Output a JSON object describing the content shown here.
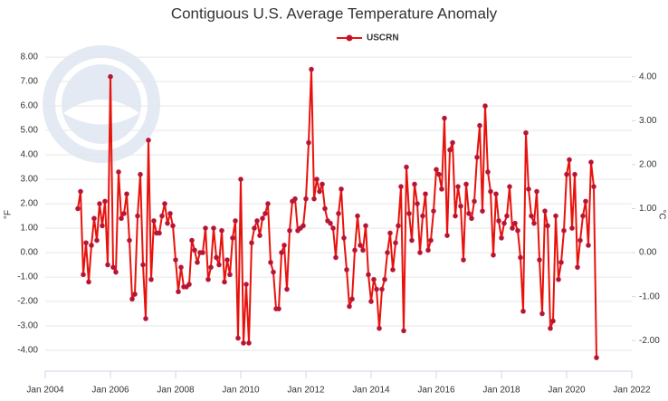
{
  "chart_data": {
    "type": "line",
    "title": "Contiguous U.S. Average Temperature Anomaly",
    "y_label": "°F",
    "y2_label": "°C",
    "xlim": [
      "2004-01",
      "2022-01"
    ],
    "xticks": [
      {
        "value": "2004-01",
        "label": "Jan 2004"
      },
      {
        "value": "2006-01",
        "label": "Jan 2006"
      },
      {
        "value": "2008-01",
        "label": "Jan 2008"
      },
      {
        "value": "2010-01",
        "label": "Jan 2010"
      },
      {
        "value": "2012-01",
        "label": "Jan 2012"
      },
      {
        "value": "2014-01",
        "label": "Jan 2014"
      },
      {
        "value": "2016-01",
        "label": "Jan 2016"
      },
      {
        "value": "2018-01",
        "label": "Jan 2018"
      },
      {
        "value": "2020-01",
        "label": "Jan 2020"
      },
      {
        "value": "2022-01",
        "label": "Jan 2022"
      }
    ],
    "ylim": [
      -4.85,
      8.3
    ],
    "yticks": [
      {
        "value": -4,
        "label": "-4.00"
      },
      {
        "value": -3,
        "label": "-3.00"
      },
      {
        "value": -2,
        "label": "-2.00"
      },
      {
        "value": -1,
        "label": "-1.00"
      },
      {
        "value": 0,
        "label": "0.00"
      },
      {
        "value": 1,
        "label": "1.00"
      },
      {
        "value": 2,
        "label": "2.00"
      },
      {
        "value": 3,
        "label": "3.00"
      },
      {
        "value": 4,
        "label": "4.00"
      },
      {
        "value": 5,
        "label": "5.00"
      },
      {
        "value": 6,
        "label": "6.00"
      },
      {
        "value": 7,
        "label": "7.00"
      },
      {
        "value": 8,
        "label": "8.00"
      }
    ],
    "y2lim": [
      -2.694,
      4.611
    ],
    "y2ticks": [
      {
        "value": -2,
        "label": "-2.00"
      },
      {
        "value": -1,
        "label": "-1.00"
      },
      {
        "value": 0,
        "label": "0.00"
      },
      {
        "value": 1,
        "label": "1.00"
      },
      {
        "value": 2,
        "label": "2.00"
      },
      {
        "value": 3,
        "label": "3.00"
      },
      {
        "value": 4,
        "label": "4.00"
      }
    ],
    "grid": true,
    "legend": "top",
    "series": [
      {
        "name": "USCRN",
        "color": "#e8120c",
        "marker_color": "#a3194f",
        "start": "2005-01",
        "values": [
          1.8,
          2.5,
          -0.9,
          0.4,
          -1.2,
          0.3,
          1.4,
          0.5,
          2.0,
          1.1,
          2.1,
          -0.5,
          7.2,
          -0.6,
          -0.8,
          3.3,
          1.4,
          1.6,
          2.4,
          0.5,
          -1.9,
          -1.7,
          1.5,
          3.2,
          -0.5,
          -2.7,
          4.6,
          -1.1,
          1.3,
          0.8,
          0.8,
          1.5,
          2.0,
          1.2,
          1.6,
          1.1,
          -0.3,
          -1.6,
          -0.6,
          -1.4,
          -1.4,
          -1.3,
          0.5,
          0.1,
          -0.4,
          0.0,
          0.0,
          1.0,
          -1.1,
          -0.6,
          1.0,
          -0.2,
          -0.5,
          0.9,
          -1.2,
          -0.3,
          -0.9,
          0.6,
          1.3,
          -3.5,
          3.0,
          -3.7,
          -1.3,
          -3.7,
          0.4,
          1.0,
          1.3,
          0.7,
          1.4,
          1.6,
          2.0,
          -0.4,
          -0.8,
          -2.3,
          -2.3,
          0.0,
          0.3,
          -1.5,
          0.9,
          2.1,
          2.2,
          0.9,
          1.0,
          1.1,
          2.2,
          4.5,
          7.5,
          2.2,
          3.0,
          2.5,
          2.8,
          1.8,
          1.3,
          1.2,
          1.0,
          -0.2,
          1.6,
          2.6,
          0.6,
          -0.7,
          -2.2,
          -1.9,
          0.1,
          1.5,
          0.3,
          0.1,
          1.1,
          -0.9,
          -2.0,
          -1.1,
          -1.5,
          -3.1,
          -1.5,
          -1.1,
          0.0,
          0.8,
          -0.7,
          0.4,
          1.1,
          2.7,
          -3.2,
          3.5,
          1.6,
          0.5,
          2.8,
          2.0,
          0.0,
          1.5,
          2.4,
          0.1,
          0.5,
          1.7,
          3.4,
          3.2,
          2.6,
          5.5,
          0.7,
          4.2,
          4.5,
          1.5,
          2.7,
          1.9,
          -0.3,
          2.8,
          1.6,
          1.4,
          2.1,
          3.9,
          5.2,
          1.7,
          6.0,
          3.3,
          2.5,
          -0.1,
          2.4,
          1.3,
          0.6,
          1.2,
          1.5,
          2.7,
          1.0,
          1.2,
          0.9,
          -0.2,
          -2.4,
          4.9,
          2.6,
          1.5,
          1.2,
          2.5,
          -0.3,
          -2.5,
          1.7,
          1.1,
          -3.1,
          -2.8,
          1.5,
          -1.1,
          -0.4,
          0.9,
          3.2,
          3.8,
          1.0,
          3.2,
          -0.6,
          0.5,
          1.5,
          2.1,
          0.3,
          3.7,
          2.7,
          -4.3
        ]
      }
    ]
  }
}
